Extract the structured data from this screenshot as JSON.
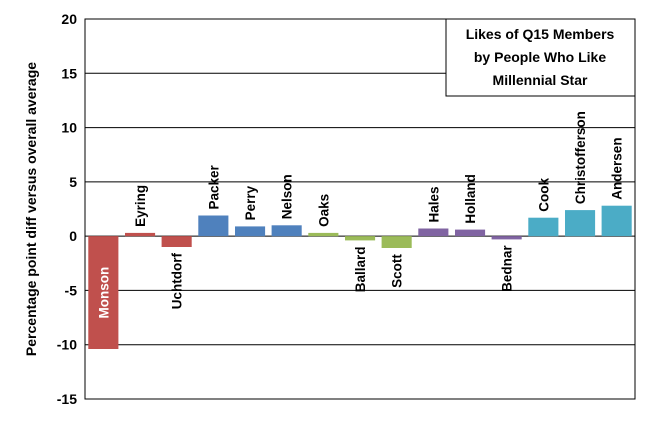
{
  "chart_data": {
    "type": "bar",
    "title_lines": [
      "Likes of Q15 Members",
      "by People Who Like",
      "Millennial Star"
    ],
    "ylabel": "Percentage point  diff versus overall average",
    "xlabel": "",
    "ylim": [
      -15,
      20
    ],
    "yticks": [
      -15,
      -10,
      -5,
      0,
      5,
      10,
      15,
      20
    ],
    "grid": true,
    "categories": [
      "Monson",
      "Eyring",
      "Uchtdorf",
      "Packer",
      "Perry",
      "Nelson",
      "Oaks",
      "Ballard",
      "Scott",
      "Hales",
      "Holland",
      "Bednar",
      "Cook",
      "Christofferson",
      "Andersen"
    ],
    "values": [
      -10.4,
      0.3,
      -1.0,
      1.9,
      0.9,
      1.0,
      0.3,
      -0.4,
      -1.1,
      0.7,
      0.6,
      -0.3,
      1.7,
      2.4,
      2.8
    ],
    "colors": [
      "#C0504D",
      "#C0504D",
      "#C0504D",
      "#4F81BD",
      "#4F81BD",
      "#4F81BD",
      "#9BBB59",
      "#9BBB59",
      "#9BBB59",
      "#8064A2",
      "#8064A2",
      "#8064A2",
      "#4BACC6",
      "#4BACC6",
      "#4BACC6"
    ],
    "label_colors": [
      "#FFFFFF",
      "#000000",
      "#000000",
      "#000000",
      "#000000",
      "#000000",
      "#000000",
      "#000000",
      "#000000",
      "#000000",
      "#000000",
      "#000000",
      "#000000",
      "#000000",
      "#000000"
    ]
  }
}
